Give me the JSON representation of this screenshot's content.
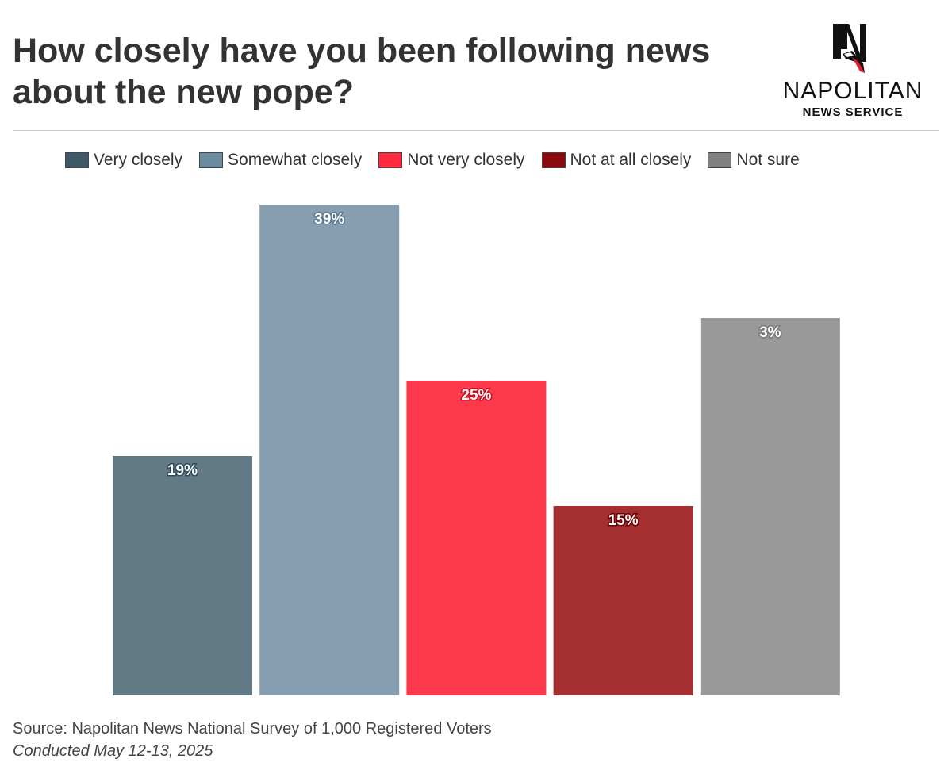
{
  "header": {
    "title": "How closely have you been following news about the new pope?"
  },
  "brand": {
    "name": "NAPOLITAN",
    "subtitle": "NEWS SERVICE"
  },
  "legend": [
    {
      "label": "Very closely",
      "color": "#3e5868"
    },
    {
      "label": "Somewhat closely",
      "color": "#6d8ba0"
    },
    {
      "label": "Not very closely",
      "color": "#fe2a3e"
    },
    {
      "label": "Not at all closely",
      "color": "#8a0a0f"
    },
    {
      "label": "Not sure",
      "color": "#808080"
    }
  ],
  "chart_data": {
    "type": "bar",
    "title": "How closely have you been following news about the new pope?",
    "categories": [
      "Very closely",
      "Somewhat closely",
      "Not very closely",
      "Not at all closely",
      "Not sure"
    ],
    "values": [
      19,
      39,
      25,
      15,
      3
    ],
    "value_labels": [
      "19%",
      "39%",
      "25%",
      "15%",
      "3%"
    ],
    "bar_colors": [
      "#627a86",
      "#879eb1",
      "#fd3a4c",
      "#a52e30",
      "#999999"
    ],
    "label_outline_colors": [
      "#2f4a5a",
      "#5a7890",
      "#c80d1e",
      "#6b0000",
      "#7a7a7a"
    ],
    "xlabel": "",
    "ylabel": "",
    "grid": false,
    "legend_position": "top"
  },
  "footer": {
    "source": "Source: Napolitan News National Survey of 1,000 Registered Voters",
    "conducted": "Conducted May 12-13, 2025"
  }
}
